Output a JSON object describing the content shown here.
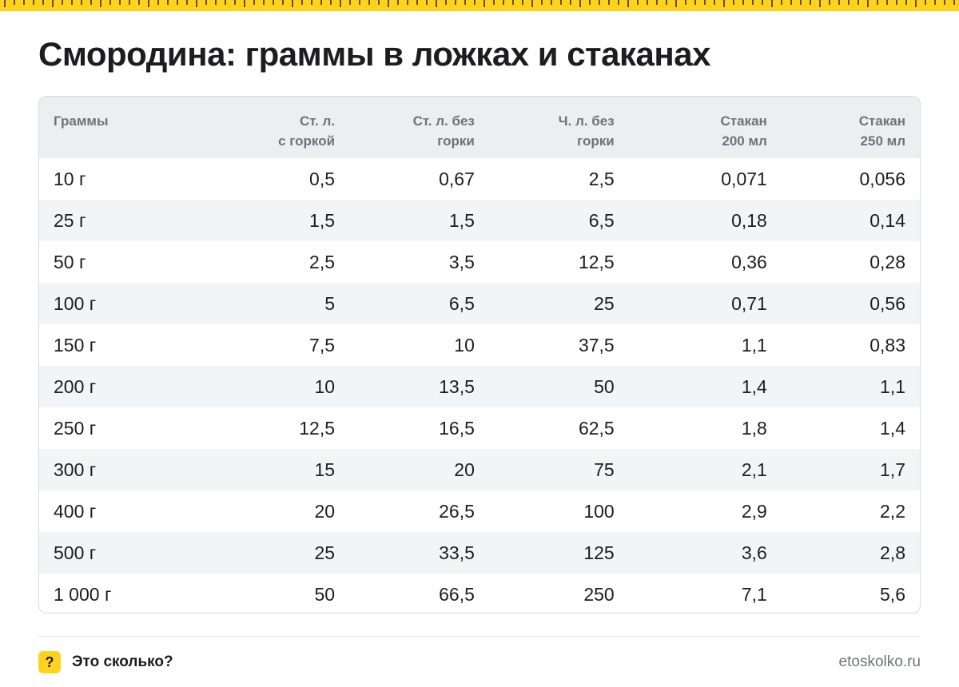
{
  "title": "Смородина: граммы в ложках и стаканах",
  "colors": {
    "accent": "#ffd21f",
    "header_bg": "#eceef0",
    "stripe_bg": "#f3f4f6",
    "header_text": "#6e737a",
    "text": "#1d1d1f"
  },
  "table": {
    "headers": [
      [
        "Граммы"
      ],
      [
        "Ст. л.",
        "с горкой"
      ],
      [
        "Ст. л. без",
        "горки"
      ],
      [
        "Ч. л. без",
        "горки"
      ],
      [
        "Стакан",
        "200 мл"
      ],
      [
        "Стакан",
        "250 мл"
      ]
    ],
    "rows": [
      [
        "10 г",
        "0,5",
        "0,67",
        "2,5",
        "0,071",
        "0,056"
      ],
      [
        "25 г",
        "1,5",
        "1,5",
        "6,5",
        "0,18",
        "0,14"
      ],
      [
        "50 г",
        "2,5",
        "3,5",
        "12,5",
        "0,36",
        "0,28"
      ],
      [
        "100 г",
        "5",
        "6,5",
        "25",
        "0,71",
        "0,56"
      ],
      [
        "150 г",
        "7,5",
        "10",
        "37,5",
        "1,1",
        "0,83"
      ],
      [
        "200 г",
        "10",
        "13,5",
        "50",
        "1,4",
        "1,1"
      ],
      [
        "250 г",
        "12,5",
        "16,5",
        "62,5",
        "1,8",
        "1,4"
      ],
      [
        "300 г",
        "15",
        "20",
        "75",
        "2,1",
        "1,7"
      ],
      [
        "400 г",
        "20",
        "26,5",
        "100",
        "2,9",
        "2,2"
      ],
      [
        "500 г",
        "25",
        "33,5",
        "125",
        "3,6",
        "2,8"
      ],
      [
        "1 000 г",
        "50",
        "66,5",
        "250",
        "7,1",
        "5,6"
      ]
    ]
  },
  "footer": {
    "logo_icon": "question-mark-icon",
    "logo_glyph": "?",
    "brand": "Это сколько?",
    "site": "etoskolko.ru"
  }
}
